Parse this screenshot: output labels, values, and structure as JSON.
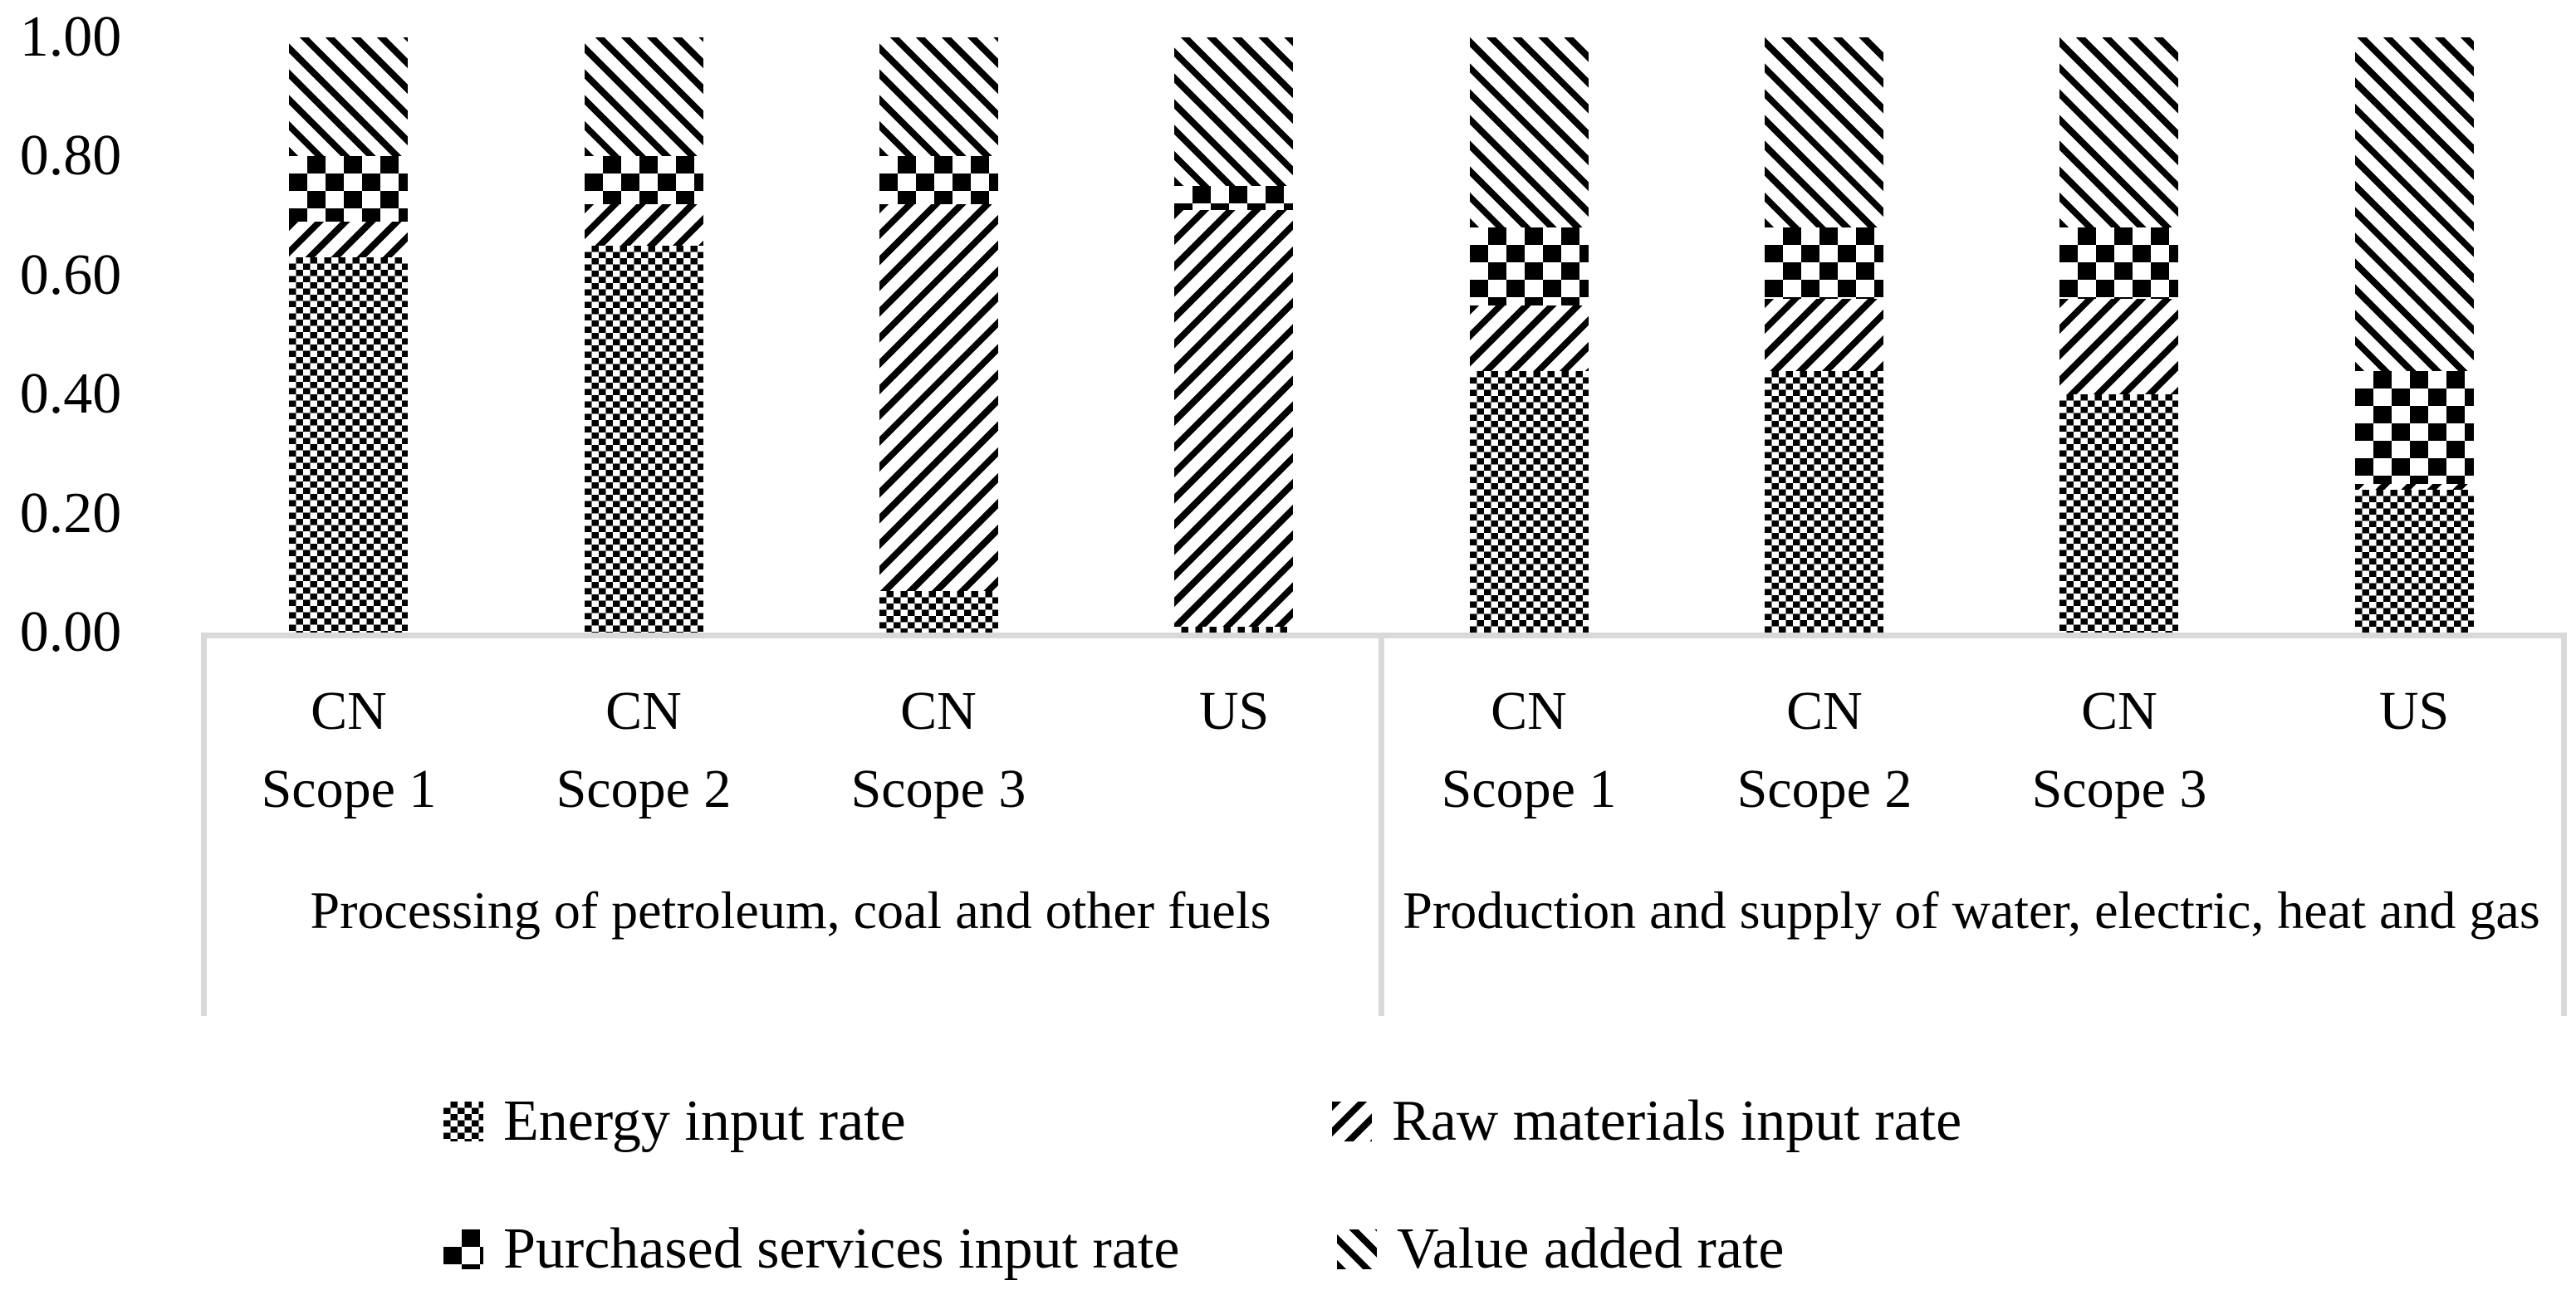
{
  "chart_data": {
    "type": "bar",
    "stacked": true,
    "title": "",
    "xlabel": "",
    "ylabel": "",
    "ylim": [
      0.0,
      1.0
    ],
    "grid": false,
    "legend_position": "bottom",
    "y_ticks": [
      "1.00",
      "0.80",
      "0.60",
      "0.40",
      "0.20",
      "0.00"
    ],
    "groups": [
      {
        "label": "Processing of petroleum, coal and other fuels"
      },
      {
        "label": "Production and supply of water, electric, heat and gas"
      }
    ],
    "categories": [
      {
        "line1": "CN",
        "line2": "Scope 1",
        "group": 0
      },
      {
        "line1": "CN",
        "line2": "Scope 2",
        "group": 0
      },
      {
        "line1": "CN",
        "line2": "Scope 3",
        "group": 0
      },
      {
        "line1": "US",
        "line2": "",
        "group": 0
      },
      {
        "line1": "CN",
        "line2": "Scope 1",
        "group": 1
      },
      {
        "line1": "CN",
        "line2": "Scope 2",
        "group": 1
      },
      {
        "line1": "CN",
        "line2": "Scope 3",
        "group": 1
      },
      {
        "line1": "US",
        "line2": "",
        "group": 1
      }
    ],
    "series": [
      {
        "name": "Energy input rate",
        "pattern": "fine-checker",
        "values": [
          0.63,
          0.65,
          0.07,
          0.01,
          0.44,
          0.44,
          0.4,
          0.24
        ]
      },
      {
        "name": "Raw materials input rate",
        "pattern": "diagonal-up",
        "values": [
          0.06,
          0.07,
          0.65,
          0.7,
          0.11,
          0.12,
          0.16,
          0.01
        ]
      },
      {
        "name": "Purchased services input rate",
        "pattern": "checkerboard",
        "values": [
          0.11,
          0.08,
          0.08,
          0.04,
          0.13,
          0.12,
          0.12,
          0.19
        ]
      },
      {
        "name": "Value added rate",
        "pattern": "diagonal-down",
        "values": [
          0.2,
          0.2,
          0.2,
          0.25,
          0.32,
          0.32,
          0.32,
          0.56
        ]
      }
    ],
    "colors": {
      "pattern_foreground": "#000000",
      "background": "#ffffff",
      "axis_frame": "#d9d9d9"
    }
  }
}
